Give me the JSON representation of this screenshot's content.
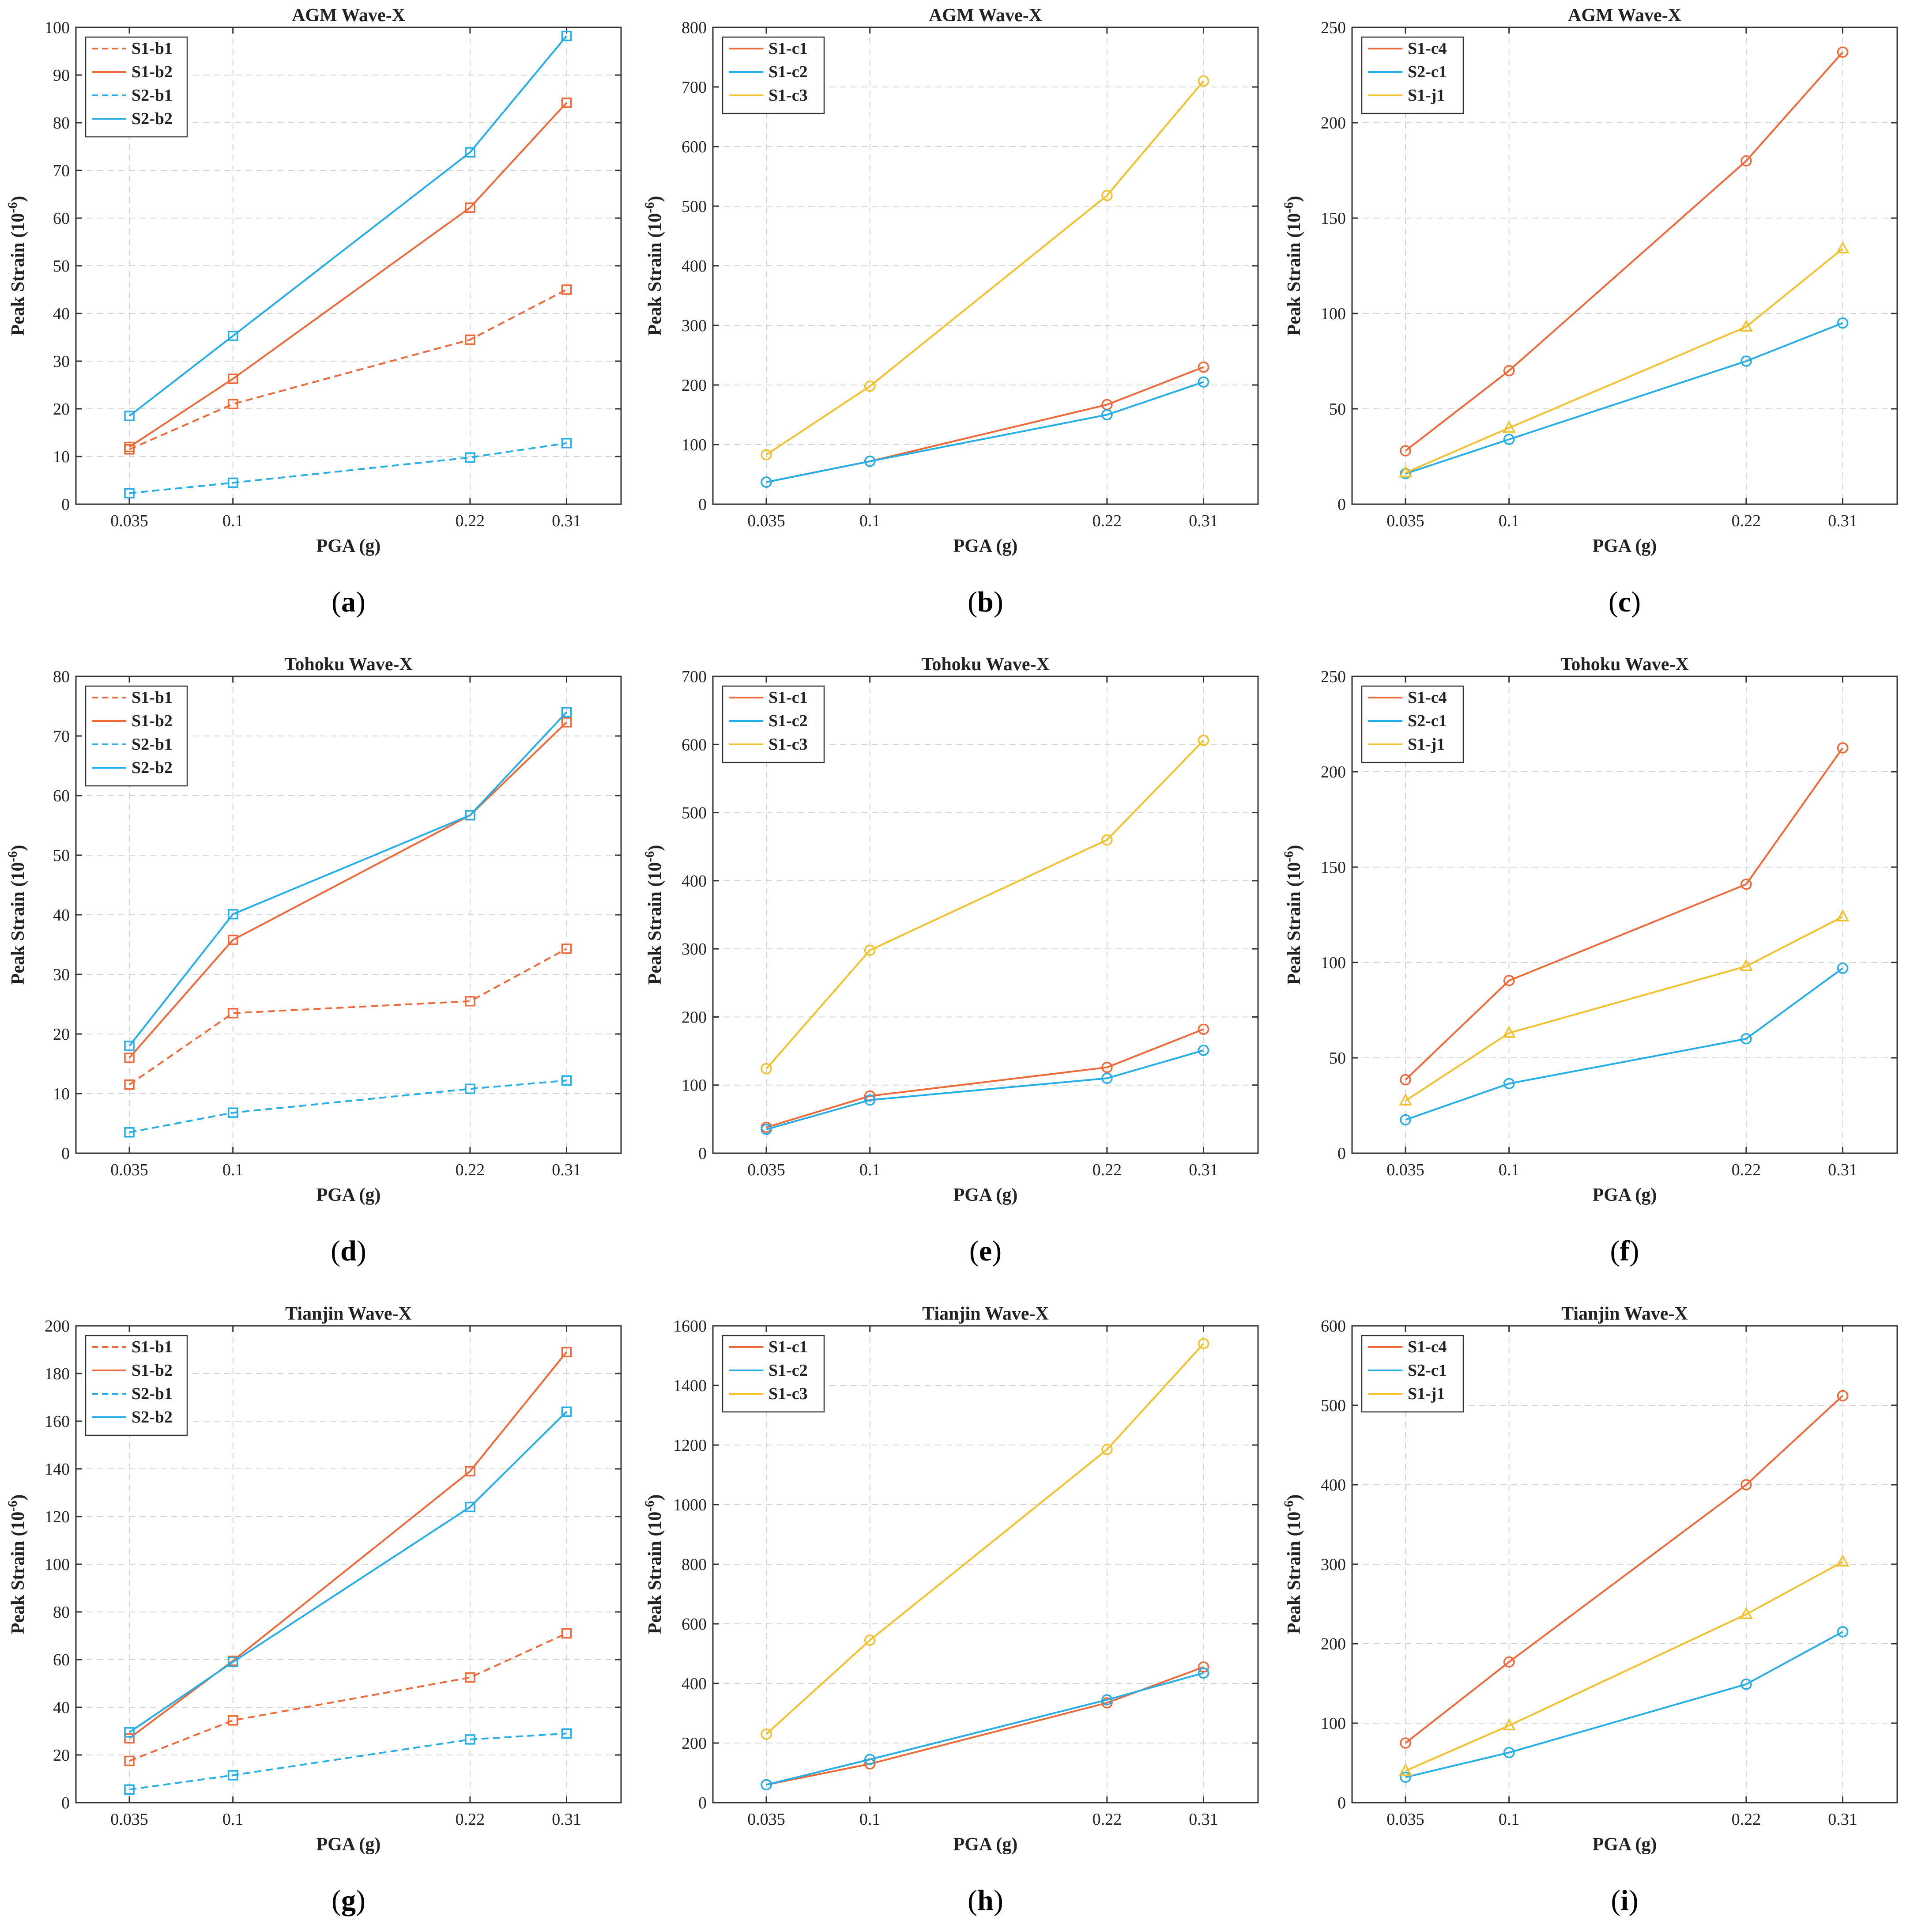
{
  "chart_data": [
    {
      "panel": "a",
      "caption": "a",
      "type": "line",
      "title": "AGM Wave-X",
      "xlabel": "PGA (g)",
      "ylabel": "Peak Strain (10-6)",
      "x_ticks": [
        "0.035",
        "0.1",
        "0.22",
        "0.31"
      ],
      "x": [
        0.035,
        0.1,
        0.22,
        0.31
      ],
      "ylim": [
        0,
        100
      ],
      "y_ticks": [
        0,
        10,
        20,
        30,
        40,
        50,
        60,
        70,
        80,
        90,
        100
      ],
      "grid": true,
      "legend_position": "top-left",
      "series": [
        {
          "name": "S1-b1",
          "color": "#ee6a3a",
          "dash": true,
          "marker": "square",
          "values": [
            11.5,
            21,
            34.5,
            45
          ]
        },
        {
          "name": "S1-b2",
          "color": "#ee6a3a",
          "dash": false,
          "marker": "square",
          "values": [
            12,
            26.3,
            62.2,
            84.2
          ]
        },
        {
          "name": "S2-b1",
          "color": "#27aee6",
          "dash": true,
          "marker": "square",
          "values": [
            2.3,
            4.5,
            9.8,
            12.8
          ]
        },
        {
          "name": "S2-b2",
          "color": "#27aee6",
          "dash": false,
          "marker": "square",
          "values": [
            18.5,
            35.3,
            73.8,
            98.2
          ]
        }
      ]
    },
    {
      "panel": "b",
      "caption": "b",
      "type": "line",
      "title": "AGM Wave-X",
      "xlabel": "PGA (g)",
      "ylabel": "Peak Strain (10-6)",
      "x_ticks": [
        "0.035",
        "0.1",
        "0.22",
        "0.31"
      ],
      "x": [
        0.035,
        0.1,
        0.22,
        0.31
      ],
      "ylim": [
        0,
        800
      ],
      "y_ticks": [
        0,
        100,
        200,
        300,
        400,
        500,
        600,
        700,
        800
      ],
      "grid": true,
      "legend_position": "top-left",
      "series": [
        {
          "name": "S1-c1",
          "color": "#ee6a3a",
          "dash": false,
          "marker": "circle",
          "values": [
            37,
            72,
            167,
            230
          ]
        },
        {
          "name": "S1-c2",
          "color": "#27aee6",
          "dash": false,
          "marker": "circle",
          "values": [
            37,
            72,
            150,
            205
          ]
        },
        {
          "name": "S1-c3",
          "color": "#f2c12e",
          "dash": false,
          "marker": "circle",
          "values": [
            83,
            198,
            518,
            710
          ]
        }
      ]
    },
    {
      "panel": "c",
      "caption": "c",
      "type": "line",
      "title": "AGM Wave-X",
      "xlabel": "PGA (g)",
      "ylabel": "Peak Strain (10-6)",
      "x_ticks": [
        "0.035",
        "0.1",
        "0.22",
        "0.31"
      ],
      "x": [
        0.035,
        0.1,
        0.22,
        0.31
      ],
      "ylim": [
        0,
        250
      ],
      "y_ticks": [
        0,
        50,
        100,
        150,
        200,
        250
      ],
      "grid": true,
      "legend_position": "top-left",
      "series": [
        {
          "name": "S1-c4",
          "color": "#ee6a3a",
          "dash": false,
          "marker": "circle",
          "values": [
            28,
            70,
            180,
            237
          ]
        },
        {
          "name": "S2-c1",
          "color": "#27aee6",
          "dash": false,
          "marker": "circle",
          "values": [
            16,
            34,
            75,
            95
          ]
        },
        {
          "name": "S1-j1",
          "color": "#f2c12e",
          "dash": false,
          "marker": "triangle",
          "values": [
            16.5,
            40,
            93,
            134
          ]
        }
      ]
    },
    {
      "panel": "d",
      "caption": "d",
      "type": "line",
      "title": "Tohoku Wave-X",
      "xlabel": "PGA (g)",
      "ylabel": "Peak Strain (10-6)",
      "x_ticks": [
        "0.035",
        "0.1",
        "0.22",
        "0.31"
      ],
      "x": [
        0.035,
        0.1,
        0.22,
        0.31
      ],
      "ylim": [
        0,
        80
      ],
      "y_ticks": [
        0,
        10,
        20,
        30,
        40,
        50,
        60,
        70,
        80
      ],
      "grid": true,
      "legend_position": "top-left",
      "series": [
        {
          "name": "S1-b1",
          "color": "#ee6a3a",
          "dash": true,
          "marker": "square",
          "values": [
            11.5,
            23.5,
            25.5,
            34.3
          ]
        },
        {
          "name": "S1-b2",
          "color": "#ee6a3a",
          "dash": false,
          "marker": "square",
          "values": [
            16,
            35.8,
            56.7,
            72.3
          ]
        },
        {
          "name": "S2-b1",
          "color": "#27aee6",
          "dash": true,
          "marker": "square",
          "values": [
            3.5,
            6.8,
            10.8,
            12.2
          ]
        },
        {
          "name": "S2-b2",
          "color": "#27aee6",
          "dash": false,
          "marker": "square",
          "values": [
            18,
            40.1,
            56.7,
            74
          ]
        }
      ]
    },
    {
      "panel": "e",
      "caption": "e",
      "type": "line",
      "title": "Tohoku Wave-X",
      "xlabel": "PGA (g)",
      "ylabel": "Peak Strain (10-6)",
      "x_ticks": [
        "0.035",
        "0.1",
        "0.22",
        "0.31"
      ],
      "x": [
        0.035,
        0.1,
        0.22,
        0.31
      ],
      "ylim": [
        0,
        700
      ],
      "y_ticks": [
        0,
        100,
        200,
        300,
        400,
        500,
        600,
        700
      ],
      "grid": true,
      "legend_position": "top-left",
      "series": [
        {
          "name": "S1-c1",
          "color": "#ee6a3a",
          "dash": false,
          "marker": "circle",
          "values": [
            38,
            84,
            126,
            182
          ]
        },
        {
          "name": "S1-c2",
          "color": "#27aee6",
          "dash": false,
          "marker": "circle",
          "values": [
            35,
            78,
            110,
            151
          ]
        },
        {
          "name": "S1-c3",
          "color": "#f2c12e",
          "dash": false,
          "marker": "circle",
          "values": [
            124,
            298,
            460,
            606
          ]
        }
      ]
    },
    {
      "panel": "f",
      "caption": "f",
      "type": "line",
      "title": "Tohoku Wave-X",
      "xlabel": "PGA (g)",
      "ylabel": "Peak Strain (10-6)",
      "x_ticks": [
        "0.035",
        "0.1",
        "0.22",
        "0.31"
      ],
      "x": [
        0.035,
        0.1,
        0.22,
        0.31
      ],
      "ylim": [
        0,
        250
      ],
      "y_ticks": [
        0,
        50,
        100,
        150,
        200,
        250
      ],
      "grid": true,
      "legend_position": "top-left",
      "series": [
        {
          "name": "S1-c4",
          "color": "#ee6a3a",
          "dash": false,
          "marker": "circle",
          "values": [
            38.5,
            90.5,
            141,
            212.5
          ]
        },
        {
          "name": "S2-c1",
          "color": "#27aee6",
          "dash": false,
          "marker": "circle",
          "values": [
            17.5,
            36.5,
            60,
            97
          ]
        },
        {
          "name": "S1-j1",
          "color": "#f2c12e",
          "dash": false,
          "marker": "triangle",
          "values": [
            27.5,
            63,
            98,
            124
          ]
        }
      ]
    },
    {
      "panel": "g",
      "caption": "g",
      "type": "line",
      "title": "Tianjin Wave-X",
      "xlabel": "PGA (g)",
      "ylabel": "Peak Strain (10-6)",
      "x_ticks": [
        "0.035",
        "0.1",
        "0.22",
        "0.31"
      ],
      "x": [
        0.035,
        0.1,
        0.22,
        0.31
      ],
      "ylim": [
        0,
        200
      ],
      "y_ticks": [
        0,
        20,
        40,
        60,
        80,
        100,
        120,
        140,
        160,
        180,
        200
      ],
      "grid": true,
      "legend_position": "top-left",
      "series": [
        {
          "name": "S1-b1",
          "color": "#ee6a3a",
          "dash": true,
          "marker": "square",
          "values": [
            17.5,
            34.5,
            52.5,
            71
          ]
        },
        {
          "name": "S1-b2",
          "color": "#ee6a3a",
          "dash": false,
          "marker": "square",
          "values": [
            27,
            59.5,
            139,
            189
          ]
        },
        {
          "name": "S2-b1",
          "color": "#27aee6",
          "dash": true,
          "marker": "square",
          "values": [
            5.5,
            11.5,
            26.5,
            29
          ]
        },
        {
          "name": "S2-b2",
          "color": "#27aee6",
          "dash": false,
          "marker": "square",
          "values": [
            29.5,
            59,
            124,
            164
          ]
        }
      ]
    },
    {
      "panel": "h",
      "caption": "h",
      "type": "line",
      "title": "Tianjin Wave-X",
      "xlabel": "PGA (g)",
      "ylabel": "Peak Strain (10-6)",
      "x_ticks": [
        "0.035",
        "0.1",
        "0.22",
        "0.31"
      ],
      "x": [
        0.035,
        0.1,
        0.22,
        0.31
      ],
      "ylim": [
        0,
        1600
      ],
      "y_ticks": [
        0,
        200,
        400,
        600,
        800,
        1000,
        1200,
        1400,
        1600
      ],
      "grid": true,
      "legend_position": "top-left",
      "series": [
        {
          "name": "S1-c1",
          "color": "#ee6a3a",
          "dash": false,
          "marker": "circle",
          "values": [
            60,
            130,
            335,
            455
          ]
        },
        {
          "name": "S1-c2",
          "color": "#27aee6",
          "dash": false,
          "marker": "circle",
          "values": [
            60,
            145,
            345,
            435
          ]
        },
        {
          "name": "S1-c3",
          "color": "#f2c12e",
          "dash": false,
          "marker": "circle",
          "values": [
            230,
            545,
            1185,
            1540
          ]
        }
      ]
    },
    {
      "panel": "i",
      "caption": "i",
      "type": "line",
      "title": "Tianjin Wave-X",
      "xlabel": "PGA (g)",
      "ylabel": "Peak Strain (10-6)",
      "x_ticks": [
        "0.035",
        "0.1",
        "0.22",
        "0.31"
      ],
      "x": [
        0.035,
        0.1,
        0.22,
        0.31
      ],
      "ylim": [
        0,
        600
      ],
      "y_ticks": [
        0,
        100,
        200,
        300,
        400,
        500,
        600
      ],
      "grid": true,
      "legend_position": "top-left",
      "series": [
        {
          "name": "S1-c4",
          "color": "#ee6a3a",
          "dash": false,
          "marker": "circle",
          "values": [
            75,
            177,
            400,
            512
          ]
        },
        {
          "name": "S2-c1",
          "color": "#27aee6",
          "dash": false,
          "marker": "circle",
          "values": [
            32,
            63,
            149,
            215
          ]
        },
        {
          "name": "S1-j1",
          "color": "#f2c12e",
          "dash": false,
          "marker": "triangle",
          "values": [
            40,
            97,
            237,
            303
          ]
        }
      ]
    }
  ]
}
